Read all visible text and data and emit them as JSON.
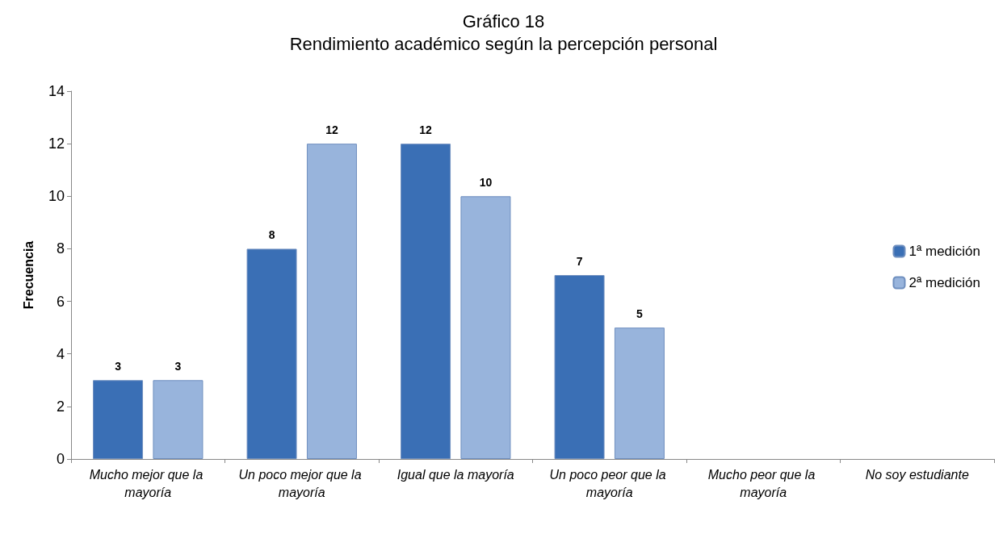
{
  "chart_data": {
    "type": "bar",
    "title": "Gráfico 18",
    "subtitle": "Rendimiento académico según la percepción personal",
    "ylabel": "Frecuencia",
    "categories": [
      "Mucho mejor que la mayoría",
      "Un poco mejor que la mayoría",
      "Igual que la mayoría",
      "Un poco peor que la mayoría",
      "Mucho peor que la mayoría",
      "No soy estudiante"
    ],
    "series": [
      {
        "name": "1ª medición",
        "color": "#3a6fb5",
        "values": [
          3,
          8,
          12,
          7,
          null,
          null
        ]
      },
      {
        "name": "2ª medición",
        "color": "#98b4dc",
        "values": [
          3,
          12,
          10,
          5,
          null,
          null
        ]
      }
    ],
    "ylim": [
      0,
      14
    ],
    "yticks": [
      0,
      2,
      4,
      6,
      8,
      10,
      12,
      14
    ],
    "grid": false,
    "legend": "right",
    "data_labels": true
  }
}
